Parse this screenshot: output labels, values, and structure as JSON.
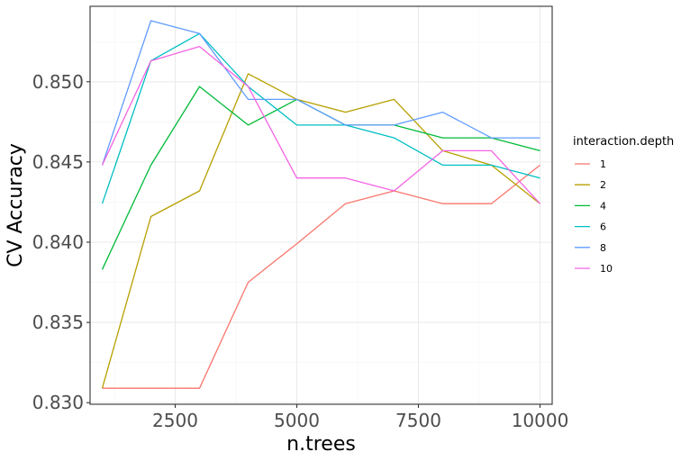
{
  "chart_data": {
    "type": "line",
    "title": "",
    "xlabel": "n.trees",
    "ylabel": "CV Accuracy",
    "xlim": [
      750,
      10250
    ],
    "ylim": [
      0.8299,
      0.8547
    ],
    "x_ticks": [
      2500,
      5000,
      7500,
      10000
    ],
    "x_minor_ticks": [
      1250,
      3750,
      6250,
      8750
    ],
    "y_ticks": [
      0.83,
      0.835,
      0.84,
      0.845,
      0.85
    ],
    "y_minor_ticks": [
      0.8325,
      0.8375,
      0.8425,
      0.8475,
      0.8525
    ],
    "grid": true,
    "legend": {
      "title": "interaction.depth",
      "position": "right"
    },
    "x": [
      1000,
      2000,
      3000,
      4000,
      5000,
      6000,
      7000,
      8000,
      9000,
      10000
    ],
    "series": [
      {
        "name": "1",
        "color": "#F8766D",
        "values": [
          0.8309,
          0.8309,
          0.8309,
          0.8375,
          0.8399,
          0.8424,
          0.8432,
          0.8424,
          0.8424,
          0.8448
        ]
      },
      {
        "name": "2",
        "color": "#B79F00",
        "values": [
          0.8309,
          0.8416,
          0.8432,
          0.8505,
          0.8489,
          0.8481,
          0.8489,
          0.8457,
          0.8448,
          0.8424
        ]
      },
      {
        "name": "4",
        "color": "#00BA38",
        "values": [
          0.8383,
          0.8448,
          0.8497,
          0.8473,
          0.8489,
          0.8473,
          0.8473,
          0.8465,
          0.8465,
          0.8457
        ]
      },
      {
        "name": "6",
        "color": "#00BFC4",
        "values": [
          0.8424,
          0.8513,
          0.853,
          0.8497,
          0.8473,
          0.8473,
          0.8465,
          0.8448,
          0.8448,
          0.844
        ]
      },
      {
        "name": "8",
        "color": "#619CFF",
        "values": [
          0.8448,
          0.8538,
          0.853,
          0.8489,
          0.8489,
          0.8473,
          0.8473,
          0.8481,
          0.8465,
          0.8465
        ]
      },
      {
        "name": "10",
        "color": "#F564E3",
        "values": [
          0.8448,
          0.8513,
          0.8522,
          0.8497,
          0.844,
          0.844,
          0.8432,
          0.8457,
          0.8457,
          0.8424
        ]
      }
    ]
  }
}
